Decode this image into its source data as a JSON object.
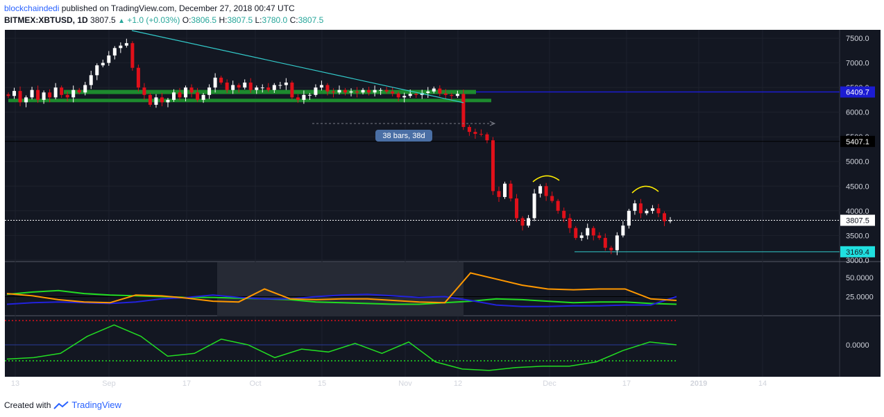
{
  "header": {
    "author": "blockchaindedi",
    "published_text": "published on TradingView.com, December 27, 2018 00:47 UTC",
    "symbol": "BITMEX:XBTUSD, 1D",
    "last": "3807.5",
    "change": "+1.0 (+0.03%)",
    "open_label": "O:",
    "open": "3806.5",
    "high_label": "H:",
    "high": "3807.5",
    "low_label": "L:",
    "low": "3780.0",
    "close_label": "C:",
    "close": "3807.5"
  },
  "footer": {
    "created_with": "Created with",
    "brand": "TradingView"
  },
  "annotations": {
    "bars_label": "38 bars, 38d"
  },
  "colors": {
    "background": "#131722",
    "up_candle": "#ffffff",
    "down_candle": "#e0101a",
    "trendline": "#33cccc",
    "support_zone": "#1d8a2e",
    "resistance_line": "#1c1cd2",
    "adx": "#ff9800",
    "di_plus": "#22dd22",
    "di_minus": "#2222dd",
    "highlight": "#e040fb"
  },
  "chart_data": [
    {
      "type": "candlestick",
      "title": "",
      "x_tick_labels": [
        "13",
        "Sep",
        "17",
        "Oct",
        "15",
        "Nov",
        "12",
        "Dec",
        "17",
        "2019",
        "14"
      ],
      "y_tick_labels": [
        "7500.0",
        "7000.0",
        "6500.0",
        "6000.0",
        "5500.0",
        "5000.0",
        "4500.0",
        "4000.0",
        "3500.0",
        "3000.0"
      ],
      "ylim": [
        2970,
        7670
      ],
      "price_labels": [
        {
          "text": "6409.7",
          "value": 6409.7
        },
        {
          "text": "5407.1",
          "value": 5407.1
        },
        {
          "text": "3807.5",
          "value": 3807.5
        },
        {
          "text": "3169.4",
          "value": 3169.4
        }
      ],
      "levels": {
        "support_zone_top": 6409.7,
        "support_zone_low": 6230,
        "current": 3807.5,
        "low_line": 3169.4
      },
      "closes": [
        6330,
        6430,
        6200,
        6300,
        6450,
        6250,
        6400,
        6300,
        6500,
        6350,
        6300,
        6450,
        6400,
        6550,
        6750,
        6950,
        7000,
        7150,
        7300,
        7350,
        7400,
        6900,
        6500,
        6350,
        6150,
        6300,
        6200,
        6250,
        6400,
        6300,
        6500,
        6400,
        6250,
        6350,
        6500,
        6700,
        6600,
        6450,
        6550,
        6500,
        6600,
        6450,
        6500,
        6500,
        6450,
        6550,
        6550,
        6600,
        6300,
        6250,
        6350,
        6350,
        6500,
        6550,
        6420,
        6400,
        6450,
        6400,
        6420,
        6400,
        6450,
        6400,
        6450,
        6450,
        6420,
        6380,
        6300,
        6330,
        6370,
        6350,
        6390,
        6420,
        6480,
        6380,
        6350,
        6330,
        6370,
        5700,
        5600,
        5560,
        5550,
        5430,
        4400,
        4280,
        4550,
        4250,
        3850,
        3700,
        3850,
        4350,
        4500,
        4300,
        4200,
        4000,
        3850,
        3650,
        3450,
        3500,
        3650,
        3500,
        3450,
        3250,
        3200,
        3500,
        3700,
        4000,
        4150,
        3950,
        4000,
        4050,
        3950,
        3790,
        3807.5
      ],
      "x_labels_dates": [
        "2018-08-13",
        "2018-09-01",
        "2018-09-17",
        "2018-10-01",
        "2018-10-15",
        "2018-11-01",
        "2018-11-12",
        "2018-12-01",
        "2018-12-17",
        "2019-01-01",
        "2019-01-14"
      ]
    },
    {
      "type": "line",
      "title": "",
      "y_tick_labels": [
        "50.0000",
        "25.0000"
      ],
      "ylim": [
        0,
        70
      ],
      "series": [
        {
          "color_key": "di_plus",
          "values": [
            28,
            31,
            33,
            29,
            27,
            26,
            25,
            24,
            24,
            23,
            22,
            21,
            18,
            17,
            16,
            15,
            15,
            17,
            19,
            22,
            21,
            19,
            17,
            18,
            18,
            16,
            15
          ]
        },
        {
          "color_key": "di_minus",
          "values": [
            15,
            17,
            18,
            17,
            16,
            18,
            22,
            24,
            27,
            24,
            22,
            22,
            25,
            27,
            28,
            26,
            24,
            25,
            20,
            14,
            12,
            12,
            13,
            13,
            14,
            14,
            25
          ]
        },
        {
          "color_key": "adx",
          "values": [
            29,
            26,
            21,
            18,
            17,
            27,
            26,
            23,
            19,
            18,
            35,
            22,
            21,
            22,
            22,
            20,
            18,
            17,
            56,
            48,
            40,
            35,
            34,
            35,
            35,
            22,
            20
          ]
        }
      ]
    },
    {
      "type": "line",
      "title": "",
      "y_tick_labels": [
        "0.0000"
      ],
      "ylim": [
        -1,
        1
      ],
      "series": [
        {
          "color_key": "di_plus",
          "values": [
            -0.5,
            -0.45,
            -0.3,
            0.3,
            0.7,
            0.3,
            -0.4,
            -0.3,
            0.2,
            0.0,
            -0.45,
            -0.15,
            -0.25,
            0.05,
            -0.3,
            0.1,
            -0.6,
            -0.85,
            -0.9,
            -0.8,
            -0.75,
            -0.75,
            -0.6,
            -0.2,
            0.1,
            0.0
          ]
        }
      ]
    }
  ]
}
